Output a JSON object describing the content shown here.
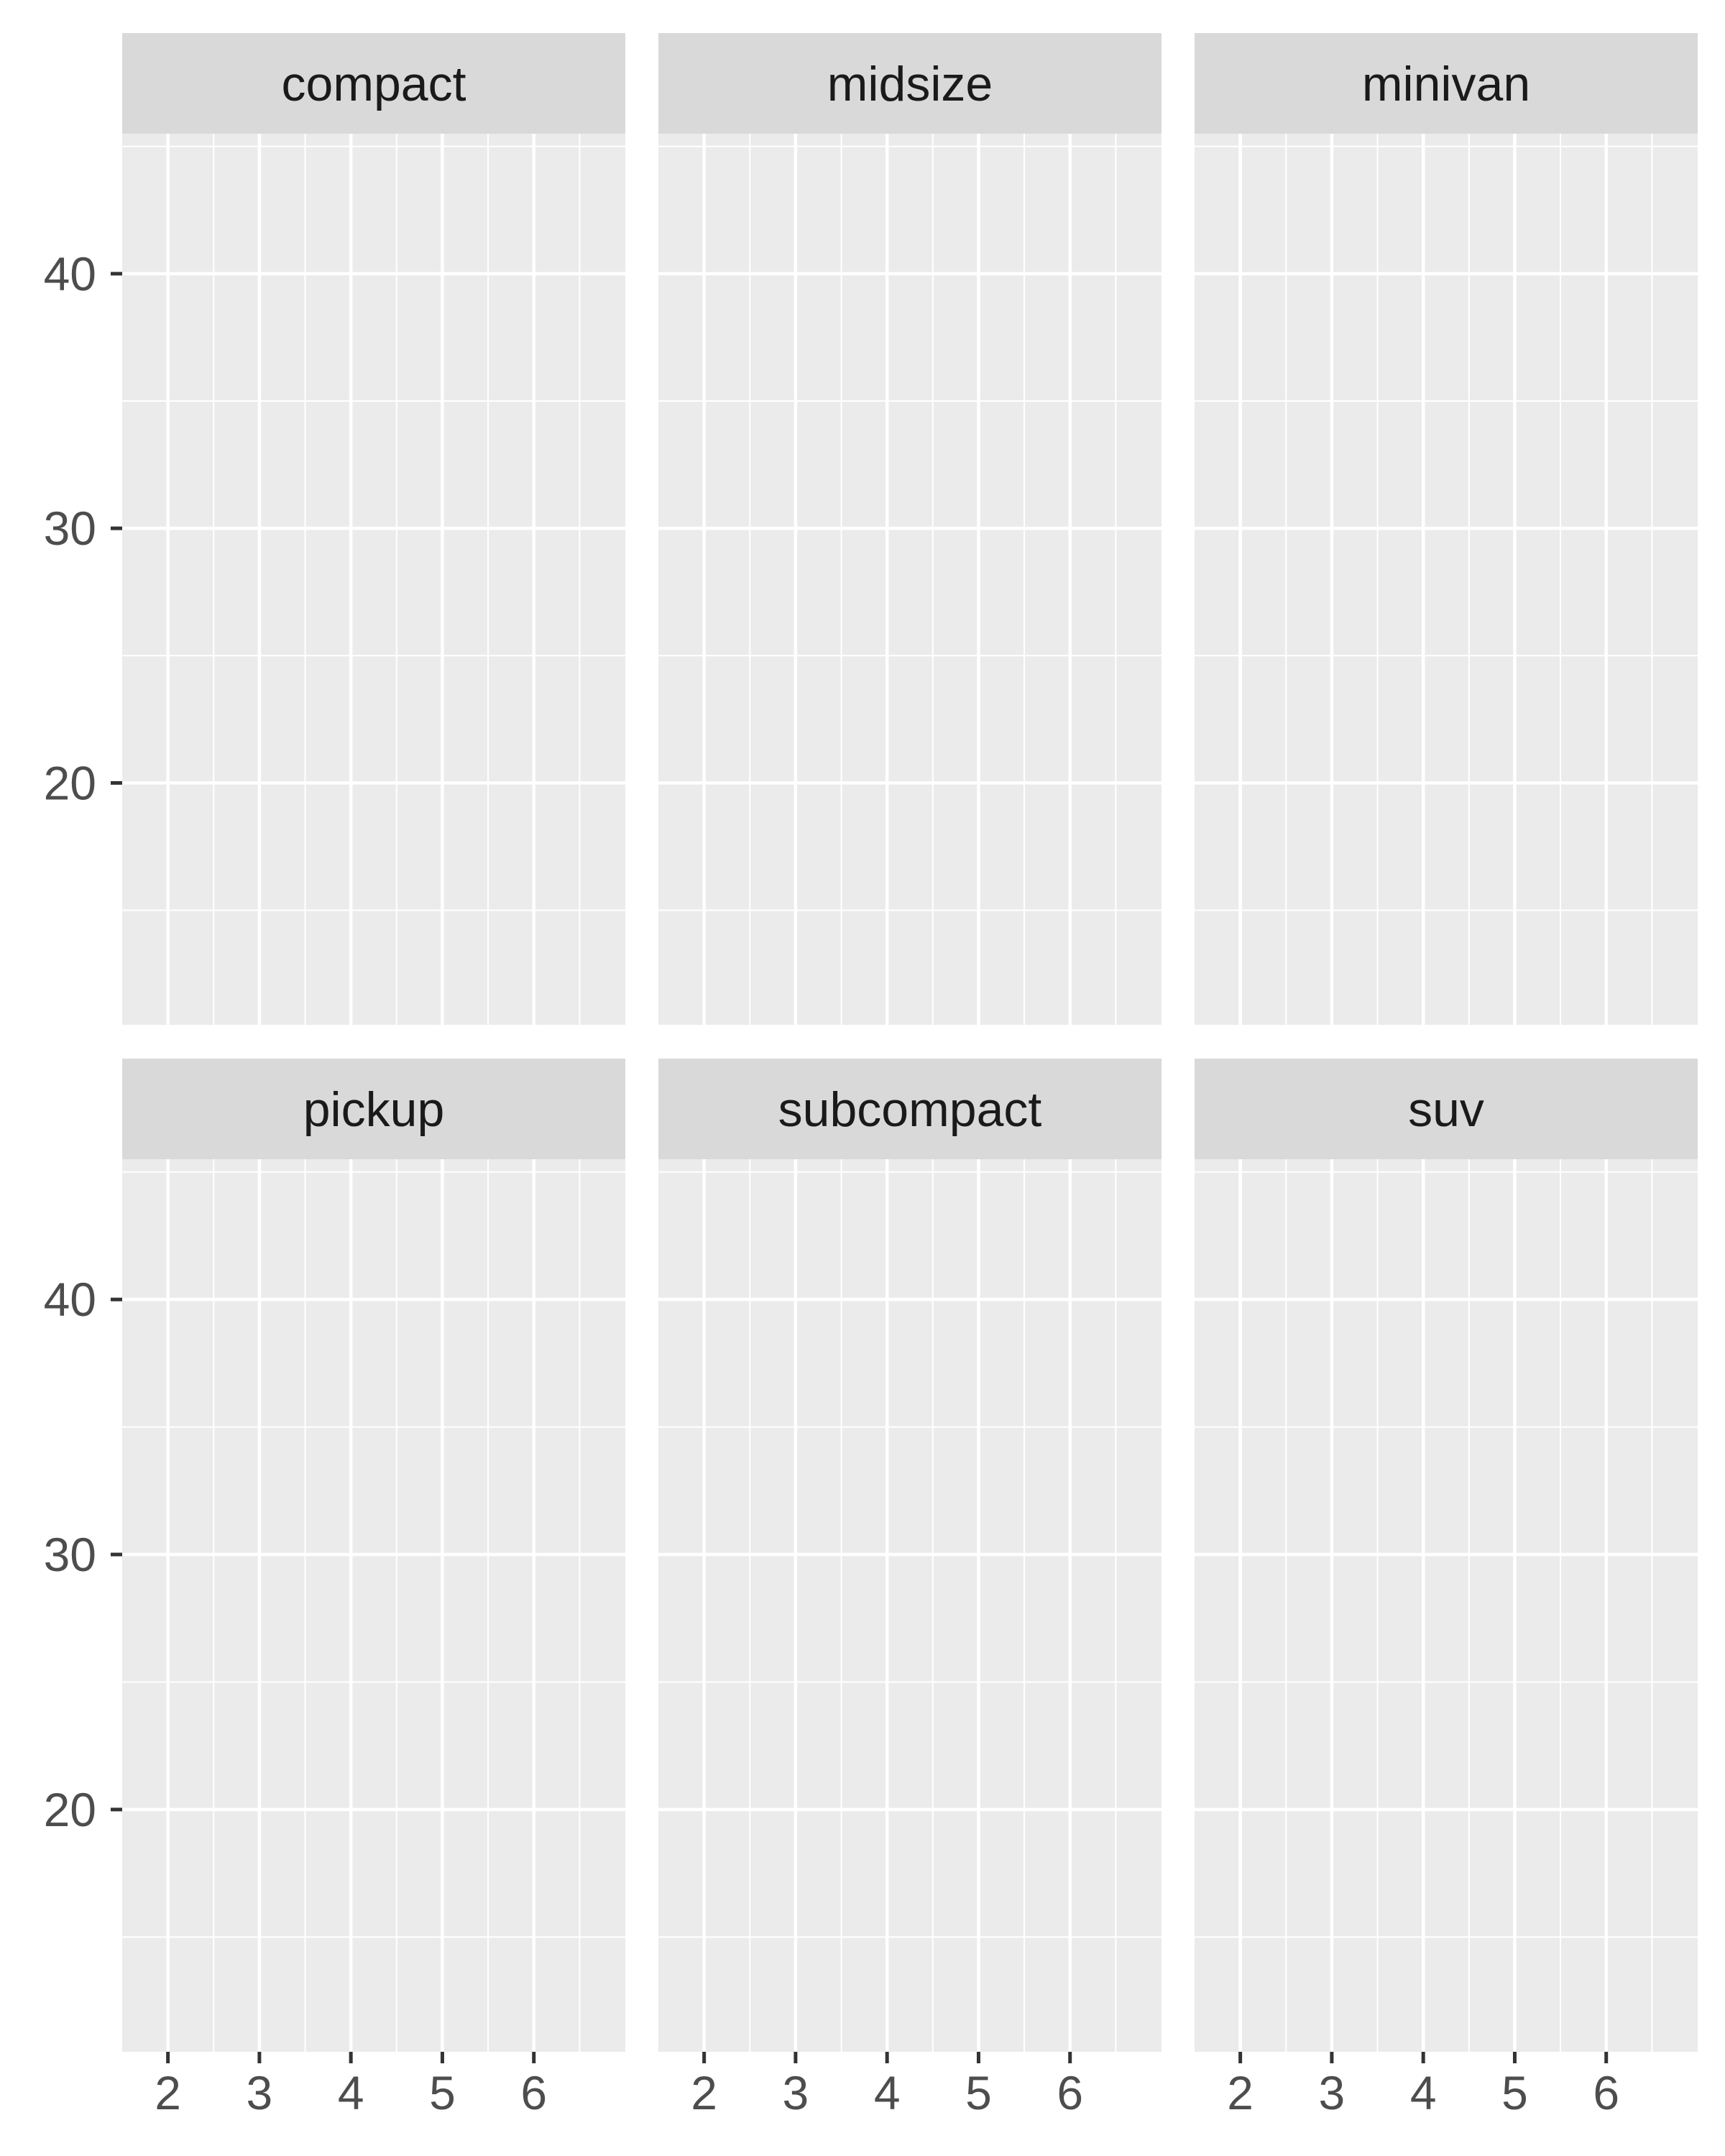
{
  "chart_data": {
    "type": "scatter",
    "facets": [
      "compact",
      "midsize",
      "minivan",
      "pickup",
      "subcompact",
      "suv"
    ],
    "series": [],
    "x_ticks": [
      2,
      3,
      4,
      5,
      6
    ],
    "y_ticks": [
      20,
      30,
      40
    ],
    "xlim": [
      1.5,
      7.0
    ],
    "ylim": [
      10.5,
      45.5
    ],
    "grid": true,
    "colors": {
      "panel": "#ebebeb",
      "strip": "#d9d9d9",
      "grid": "#ffffff",
      "tick": "#333333",
      "text": "#4d4d4d"
    }
  }
}
